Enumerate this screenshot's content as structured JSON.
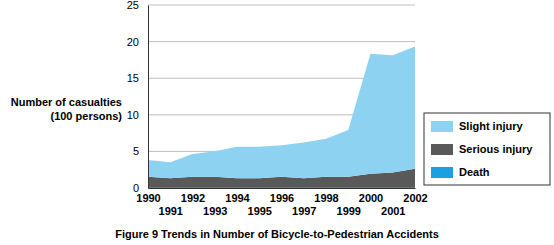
{
  "chart_data": {
    "type": "area",
    "title": "Figure 9  Trends in Number of Bicycle-to-Pedestrian Accidents",
    "y_label": [
      "Number of casualties",
      "(100 persons)"
    ],
    "x": [
      1990,
      1991,
      1992,
      1993,
      1994,
      1995,
      1996,
      1997,
      1998,
      1999,
      2000,
      2001,
      2002
    ],
    "xlim": [
      1990,
      2002
    ],
    "xticks": [
      1990,
      1991,
      1992,
      1993,
      1994,
      1995,
      1996,
      1997,
      1998,
      1999,
      2000,
      2001,
      2002
    ],
    "ylim": [
      0,
      25
    ],
    "yticks": [
      0,
      5,
      10,
      15,
      20,
      25
    ],
    "grid": true,
    "stacked": true,
    "legend": "right",
    "series": [
      {
        "name": "Death",
        "color": "#1aa0e0",
        "values": [
          0.03,
          0.03,
          0.03,
          0.03,
          0.03,
          0.03,
          0.03,
          0.03,
          0.03,
          0.03,
          0.03,
          0.03,
          0.03
        ]
      },
      {
        "name": "Serious injury",
        "color": "#595959",
        "values": [
          1.5,
          1.3,
          1.5,
          1.5,
          1.3,
          1.3,
          1.5,
          1.3,
          1.5,
          1.5,
          1.9,
          2.1,
          2.6
        ]
      },
      {
        "name": "Slight injury",
        "color": "#8ed2f2",
        "values": [
          2.3,
          2.2,
          3.1,
          3.5,
          4.3,
          4.3,
          4.3,
          4.9,
          5.2,
          6.4,
          16.4,
          16.0,
          16.7
        ]
      }
    ]
  }
}
